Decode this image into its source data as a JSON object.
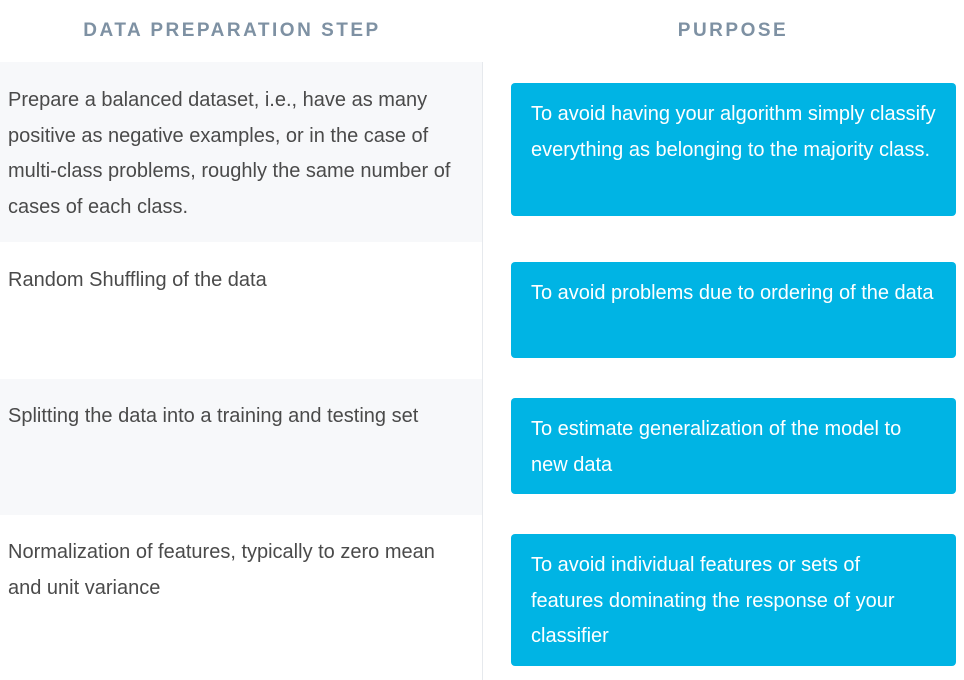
{
  "header": {
    "step": "DATA PREPARATION STEP",
    "purpose": "PURPOSE"
  },
  "rows": [
    {
      "step": "Prepare a balanced dataset, i.e., have as many positive as negative examples, or in the case of multi-class problems, roughly the same number of cases of each class.",
      "purpose": "To avoid having your algorithm simply classify everything as belonging to the majority class."
    },
    {
      "step": "Random Shuffling of the data",
      "purpose": "To avoid problems due to ordering of the data"
    },
    {
      "step": "Splitting the data into a training and testing set",
      "purpose": "To estimate generalization of the model to new data"
    },
    {
      "step": "Normalization of features, typically to zero mean and unit variance",
      "purpose": "To avoid individual features or sets of features dominating the response of your classifier"
    }
  ],
  "colors": {
    "accent": "#00b4e4",
    "header_text": "#7e91a3",
    "body_text": "#4a4a4a",
    "shade": "#f7f8fa"
  }
}
